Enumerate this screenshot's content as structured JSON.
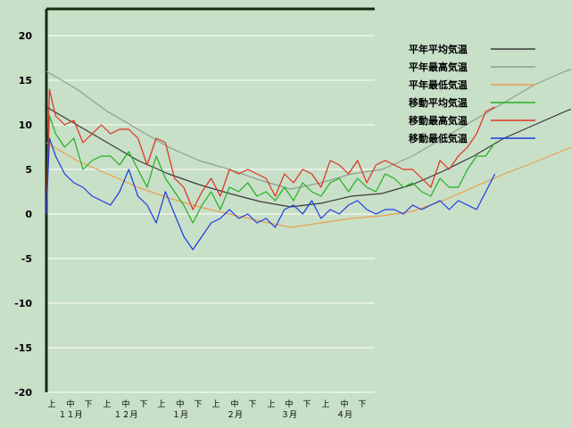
{
  "chart_data": {
    "type": "line",
    "ylim": [
      -20,
      23
    ],
    "y_ticks": [
      20,
      15,
      10,
      5,
      0,
      -5,
      -10,
      -15,
      -20
    ],
    "grid": true,
    "legend_position": "top-right",
    "x_tick_labels": [
      "上",
      "中",
      "下",
      "上",
      "中",
      "下",
      "上",
      "中",
      "下",
      "上",
      "中",
      "下",
      "上",
      "中",
      "下",
      "上",
      "中",
      "下"
    ],
    "x_month_labels": [
      "１１月",
      "１２月",
      "１月",
      "２月",
      "３月",
      "４月"
    ],
    "x_note": "x values are day offsets from the start of November (0 = Nov 1)",
    "series": [
      {
        "name": "平年平均気温",
        "color": "#3a3a3a",
        "x": [
          0,
          10,
          20,
          30,
          40,
          50,
          60,
          70,
          80,
          90,
          100,
          110,
          120,
          130,
          140,
          150,
          160,
          170,
          180
        ],
        "y": [
          12.0,
          10.0,
          8.0,
          6.0,
          4.5,
          3.3,
          2.3,
          1.4,
          0.8,
          1.2,
          2.0,
          2.3,
          3.3,
          4.8,
          6.5,
          8.5,
          10.0,
          11.5,
          12.8
        ]
      },
      {
        "name": "平年最高気温",
        "color": "#8f9f8f",
        "x": [
          0,
          10,
          20,
          30,
          40,
          50,
          60,
          70,
          80,
          90,
          100,
          110,
          120,
          130,
          140,
          150,
          160,
          170,
          180
        ],
        "y": [
          16.0,
          14.0,
          11.5,
          9.5,
          7.5,
          6.0,
          5.0,
          3.8,
          2.8,
          3.5,
          4.5,
          5.0,
          6.5,
          8.5,
          10.5,
          12.5,
          14.5,
          16.0,
          17.2
        ]
      },
      {
        "name": "平年最低気温",
        "color": "#e8a050",
        "x": [
          0,
          10,
          20,
          30,
          40,
          50,
          60,
          70,
          80,
          90,
          100,
          110,
          120,
          130,
          140,
          150,
          160,
          170,
          180
        ],
        "y": [
          8.0,
          6.0,
          4.5,
          3.0,
          1.8,
          0.8,
          0.0,
          -0.8,
          -1.5,
          -1.0,
          -0.5,
          -0.2,
          0.3,
          1.5,
          3.0,
          4.5,
          5.8,
          7.2,
          8.5
        ]
      },
      {
        "name": "移動平均気温",
        "color": "#20b020",
        "x": [
          0,
          1,
          3,
          6,
          9,
          12,
          15,
          18,
          21,
          24,
          27,
          30,
          33,
          36,
          39,
          42,
          45,
          48,
          51,
          54,
          57,
          60,
          63,
          66,
          69,
          72,
          75,
          78,
          81,
          84,
          87,
          90,
          93,
          96,
          99,
          102,
          105,
          108,
          111,
          114,
          117,
          120,
          123,
          126,
          129,
          132,
          135,
          138,
          141,
          144,
          147
        ],
        "y": [
          0,
          11.0,
          9.0,
          7.5,
          8.5,
          5.0,
          6.0,
          6.5,
          6.5,
          5.5,
          7.0,
          5.0,
          3.0,
          6.5,
          4.0,
          2.5,
          1.0,
          -1.0,
          1.0,
          2.5,
          0.5,
          3.0,
          2.5,
          3.5,
          2.0,
          2.5,
          1.5,
          3.0,
          1.5,
          3.5,
          2.5,
          2.0,
          3.5,
          4.0,
          2.5,
          4.0,
          3.0,
          2.5,
          4.5,
          4.0,
          3.0,
          3.5,
          2.5,
          2.0,
          4.0,
          3.0,
          3.0,
          5.0,
          6.5,
          6.5,
          8.0
        ]
      },
      {
        "name": "移動最高気温",
        "color": "#e03020",
        "x": [
          0,
          1,
          3,
          6,
          9,
          12,
          15,
          18,
          21,
          24,
          27,
          30,
          33,
          36,
          39,
          42,
          45,
          48,
          51,
          54,
          57,
          60,
          63,
          66,
          69,
          72,
          75,
          78,
          81,
          84,
          87,
          90,
          93,
          96,
          99,
          102,
          105,
          108,
          111,
          114,
          117,
          120,
          123,
          126,
          129,
          132,
          135,
          138,
          141,
          144,
          147
        ],
        "y": [
          0,
          14.0,
          11.0,
          10.0,
          10.5,
          8.0,
          9.0,
          10.0,
          9.0,
          9.5,
          9.5,
          8.5,
          5.5,
          8.5,
          8.0,
          4.0,
          3.0,
          0.5,
          2.5,
          4.0,
          2.0,
          5.0,
          4.5,
          5.0,
          4.5,
          4.0,
          2.0,
          4.5,
          3.5,
          5.0,
          4.5,
          3.0,
          6.0,
          5.5,
          4.5,
          6.0,
          3.5,
          5.5,
          6.0,
          5.5,
          5.0,
          5.0,
          4.0,
          3.0,
          6.0,
          5.0,
          6.5,
          7.5,
          9.0,
          11.5,
          12.0
        ]
      },
      {
        "name": "移動最低気温",
        "color": "#1a3ae0",
        "x": [
          0,
          1,
          3,
          6,
          9,
          12,
          15,
          18,
          21,
          24,
          27,
          30,
          33,
          36,
          39,
          42,
          45,
          48,
          51,
          54,
          57,
          60,
          63,
          66,
          69,
          72,
          75,
          78,
          81,
          84,
          87,
          90,
          93,
          96,
          99,
          102,
          105,
          108,
          111,
          114,
          117,
          120,
          123,
          126,
          129,
          132,
          135,
          138,
          141,
          144,
          147
        ],
        "y": [
          0,
          8.5,
          6.5,
          4.5,
          3.5,
          3.0,
          2.0,
          1.5,
          1.0,
          2.5,
          5.0,
          2.0,
          1.0,
          -1.0,
          2.5,
          0.0,
          -2.5,
          -4.0,
          -2.5,
          -1.0,
          -0.5,
          0.5,
          -0.5,
          0.0,
          -1.0,
          -0.5,
          -1.5,
          0.5,
          1.0,
          0.0,
          1.5,
          -0.5,
          0.5,
          0.0,
          1.0,
          1.5,
          0.5,
          0.0,
          0.5,
          0.5,
          0.0,
          1.0,
          0.5,
          1.0,
          1.5,
          0.5,
          1.5,
          1.0,
          0.5,
          2.5,
          4.5
        ]
      }
    ]
  }
}
